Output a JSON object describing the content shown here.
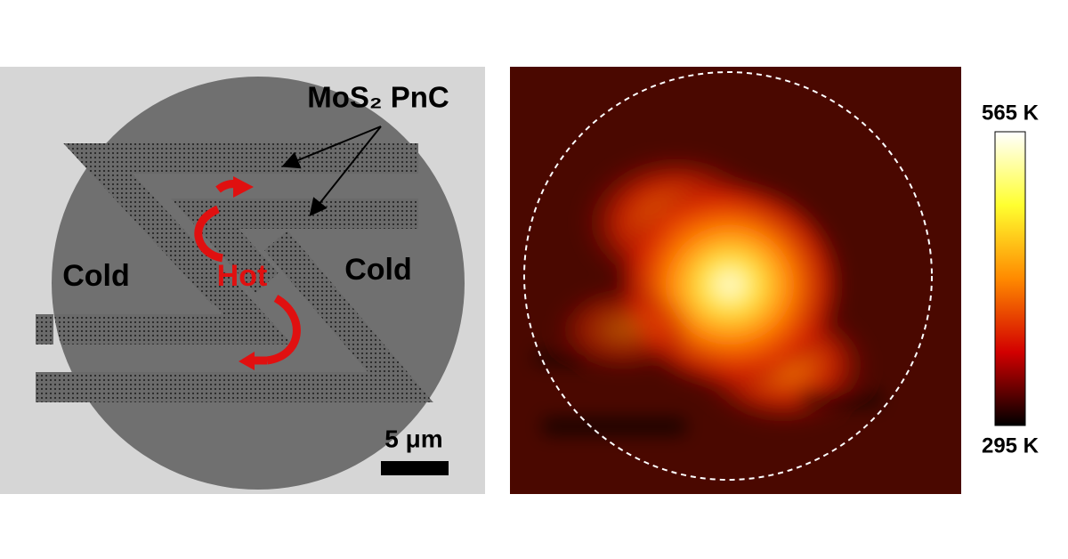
{
  "left_panel": {
    "label_top": "MoS₂ PnC",
    "label_left": "Cold",
    "label_center": "Hot",
    "label_right": "Cold",
    "scale_bar": "5 μm"
  },
  "right_panel": {
    "colorbar_max": "565 K",
    "colorbar_min": "295 K"
  }
}
